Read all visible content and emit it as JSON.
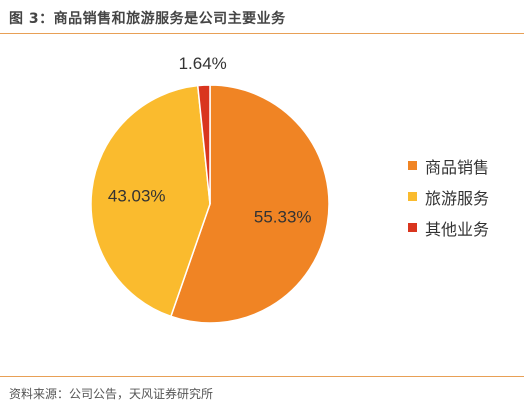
{
  "title": "图 3：商品销售和旅游服务是公司主要业务",
  "source": "资料来源：公司公告，天风证券研究所",
  "chart_data": {
    "type": "pie",
    "title": "图 3：商品销售和旅游服务是公司主要业务",
    "series": [
      {
        "name": "商品销售",
        "value": 55.33,
        "label": "55.33%",
        "color": "#F08424"
      },
      {
        "name": "旅游服务",
        "value": 43.03,
        "label": "43.03%",
        "color": "#FABB2E"
      },
      {
        "name": "其他业务",
        "value": 1.64,
        "label": "1.64%",
        "color": "#D9351E"
      }
    ],
    "legend_position": "right",
    "start_angle_direction": "clockwise-from-top"
  }
}
